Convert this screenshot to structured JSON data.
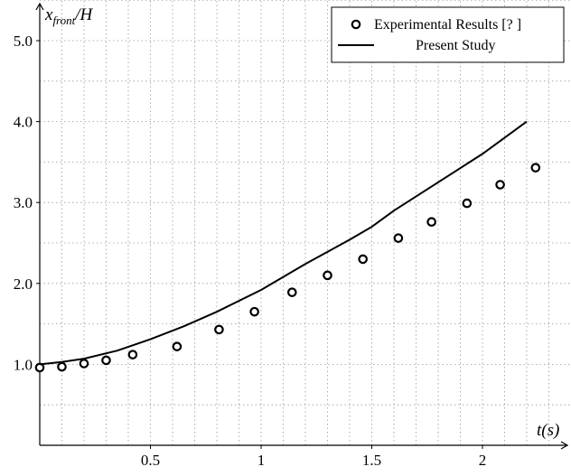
{
  "chart_data": {
    "type": "line",
    "ylabel_main": "x",
    "ylabel_sub": "front",
    "ylabel_tail": "/H",
    "xlabel": "t(s)",
    "xlim": [
      0,
      2.4
    ],
    "ylim": [
      0,
      5.5
    ],
    "x_ticks": [
      0.5,
      1,
      1.5,
      2
    ],
    "x_tick_labels": [
      "0.5",
      "1",
      "1.5",
      "2"
    ],
    "y_ticks": [
      1.0,
      2.0,
      3.0,
      4.0,
      5.0
    ],
    "y_tick_labels": [
      "1.0",
      "2.0",
      "3.0",
      "4.0",
      "5.0"
    ],
    "grid": true,
    "legend_position": "top-right",
    "series": [
      {
        "name": "Experimental Results [? ]",
        "kind": "markers",
        "marker": "open-circle",
        "color": "#000000",
        "x": [
          0.0,
          0.1,
          0.2,
          0.3,
          0.42,
          0.62,
          0.81,
          0.97,
          1.14,
          1.3,
          1.46,
          1.62,
          1.77,
          1.93,
          2.08,
          2.24
        ],
        "y": [
          0.96,
          0.97,
          1.01,
          1.05,
          1.12,
          1.22,
          1.43,
          1.65,
          1.89,
          2.1,
          2.3,
          2.56,
          2.76,
          2.99,
          3.22,
          3.43
        ]
      },
      {
        "name": "Present Study",
        "kind": "line",
        "color": "#000000",
        "x": [
          0.0,
          0.1,
          0.2,
          0.35,
          0.5,
          0.65,
          0.8,
          1.0,
          1.2,
          1.4,
          1.5,
          1.6,
          1.8,
          2.0,
          2.2
        ],
        "y": [
          1.0,
          1.03,
          1.07,
          1.17,
          1.31,
          1.47,
          1.65,
          1.92,
          2.24,
          2.54,
          2.7,
          2.9,
          3.25,
          3.6,
          4.0
        ]
      }
    ]
  }
}
